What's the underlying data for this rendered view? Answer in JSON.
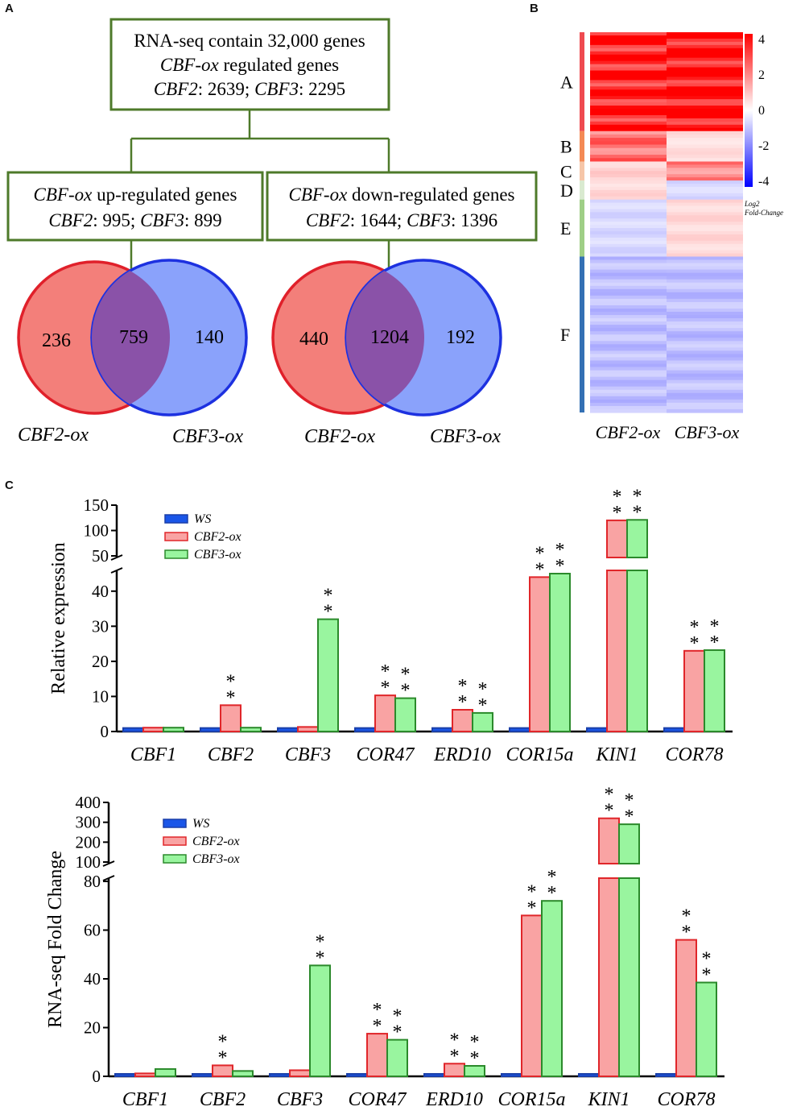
{
  "panel_labels": {
    "a": "A",
    "b": "B",
    "c": "C"
  },
  "panel_a": {
    "top_box": {
      "line1": "RNA-seq contain 32,000 genes",
      "line2_italic": "CBF-ox",
      "line2_rest": " regulated genes",
      "line3_a": "CBF2",
      "line3_b": ": 2639; ",
      "line3_c": "CBF3",
      "line3_d": ": 2295"
    },
    "up_box": {
      "line1_italic": "CBF-ox",
      "line1_rest": " up-regulated genes",
      "line2_a": "CBF2",
      "line2_b": ": 995; ",
      "line2_c": "CBF3",
      "line2_d": ": 899"
    },
    "down_box": {
      "line1_italic": "CBF-ox",
      "line1_rest": " down-regulated genes",
      "line2_a": "CBF2",
      "line2_b": ": 1644; ",
      "line2_c": "CBF3",
      "line2_d": ": 1396"
    },
    "venn_up": {
      "left_only": "236",
      "overlap": "759",
      "right_only": "140",
      "left_label": "CBF2-ox",
      "right_label": "CBF3-ox"
    },
    "venn_down": {
      "left_only": "440",
      "overlap": "1204",
      "right_only": "192",
      "left_label": "CBF2-ox",
      "right_label": "CBF3-ox"
    },
    "colors": {
      "red": "#f37f7a",
      "red_edge": "#e0202a",
      "blue": "#8aa2fb",
      "blue_edge": "#1d31e0",
      "overlap": "#8a52a8",
      "box": "#4e7a2a"
    }
  },
  "panel_b": {
    "clusters": [
      {
        "name": "A",
        "color": "#ef4b50",
        "cbf2": 3.6,
        "cbf3": 3.9
      },
      {
        "name": "B",
        "color": "#f48a55",
        "cbf2": 2.2,
        "cbf3": 0.5
      },
      {
        "name": "C",
        "color": "#f6c6a8",
        "cbf2": 0.7,
        "cbf3": 1.9
      },
      {
        "name": "D",
        "color": "#d9ead0",
        "cbf2": 0.6,
        "cbf3": -0.6
      },
      {
        "name": "E",
        "color": "#9fcf86",
        "cbf2": -0.6,
        "cbf3": 0.6
      },
      {
        "name": "F",
        "color": "#3470b4",
        "cbf2": -1.0,
        "cbf3": -1.0
      }
    ],
    "columns": [
      "CBF2-ox",
      "CBF3-ox"
    ],
    "scale_ticks": [
      "4",
      "2",
      "0",
      "-2",
      "-4"
    ],
    "scale_title1": "Log2",
    "scale_title2": "Fold-Change"
  },
  "chart_data": [
    {
      "type": "bar",
      "title": "",
      "ylabel": "Relative expression",
      "categories": [
        "CBF1",
        "CBF2",
        "CBF3",
        "COR47",
        "ERD10",
        "COR15a",
        "KIN1",
        "COR78"
      ],
      "series": [
        {
          "name": "WS",
          "color": "#1a56e8",
          "values": [
            1,
            1,
            1,
            1,
            1,
            1,
            1,
            1
          ]
        },
        {
          "name": "CBF2-ox",
          "color": "#f9a3a3",
          "values": [
            1.1,
            7.5,
            1.3,
            10.3,
            6.2,
            44,
            120,
            23
          ]
        },
        {
          "name": "CBF3-ox",
          "color": "#99f59f",
          "values": [
            1.1,
            1.1,
            32,
            9.5,
            5.3,
            45,
            121,
            23.2
          ]
        }
      ],
      "significance": {
        "CBF2-ox": [
          "",
          "**",
          "",
          "**",
          "**",
          "**",
          "**",
          "**"
        ],
        "CBF3-ox": [
          "",
          "",
          "**",
          "**",
          "**",
          "**",
          "**",
          "**"
        ]
      },
      "break": {
        "lower_ylim": [
          0,
          45
        ],
        "upper_ylim": [
          50,
          150
        ]
      },
      "lower_ticks": [
        "0",
        "10",
        "20",
        "30",
        "40"
      ],
      "upper_ticks": [
        "50",
        "100",
        "150"
      ]
    },
    {
      "type": "bar",
      "title": "",
      "ylabel": "RNA-seq Fold Change",
      "categories": [
        "CBF1",
        "CBF2",
        "CBF3",
        "COR47",
        "ERD10",
        "COR15a",
        "KIN1",
        "COR78"
      ],
      "series": [
        {
          "name": "WS",
          "color": "#1a56e8",
          "values": [
            1,
            1,
            1,
            1,
            1,
            1,
            1,
            1
          ]
        },
        {
          "name": "CBF2-ox",
          "color": "#f9a3a3",
          "values": [
            1.2,
            4.5,
            2.5,
            17.5,
            5.2,
            66,
            320,
            56
          ]
        },
        {
          "name": "CBF3-ox",
          "color": "#99f59f",
          "values": [
            3,
            2.2,
            45.5,
            15,
            4.3,
            72,
            290,
            38.5
          ]
        }
      ],
      "significance": {
        "CBF2-ox": [
          "",
          "**",
          "",
          "**",
          "**",
          "**",
          "**",
          "**"
        ],
        "CBF3-ox": [
          "",
          "",
          "**",
          "**",
          "**",
          "**",
          "**",
          "**"
        ]
      },
      "break": {
        "lower_ylim": [
          0,
          80
        ],
        "upper_ylim": [
          100,
          400
        ]
      },
      "lower_ticks": [
        "0",
        "20",
        "40",
        "60",
        "80"
      ],
      "upper_ticks": [
        "100",
        "200",
        "300",
        "400"
      ]
    }
  ]
}
